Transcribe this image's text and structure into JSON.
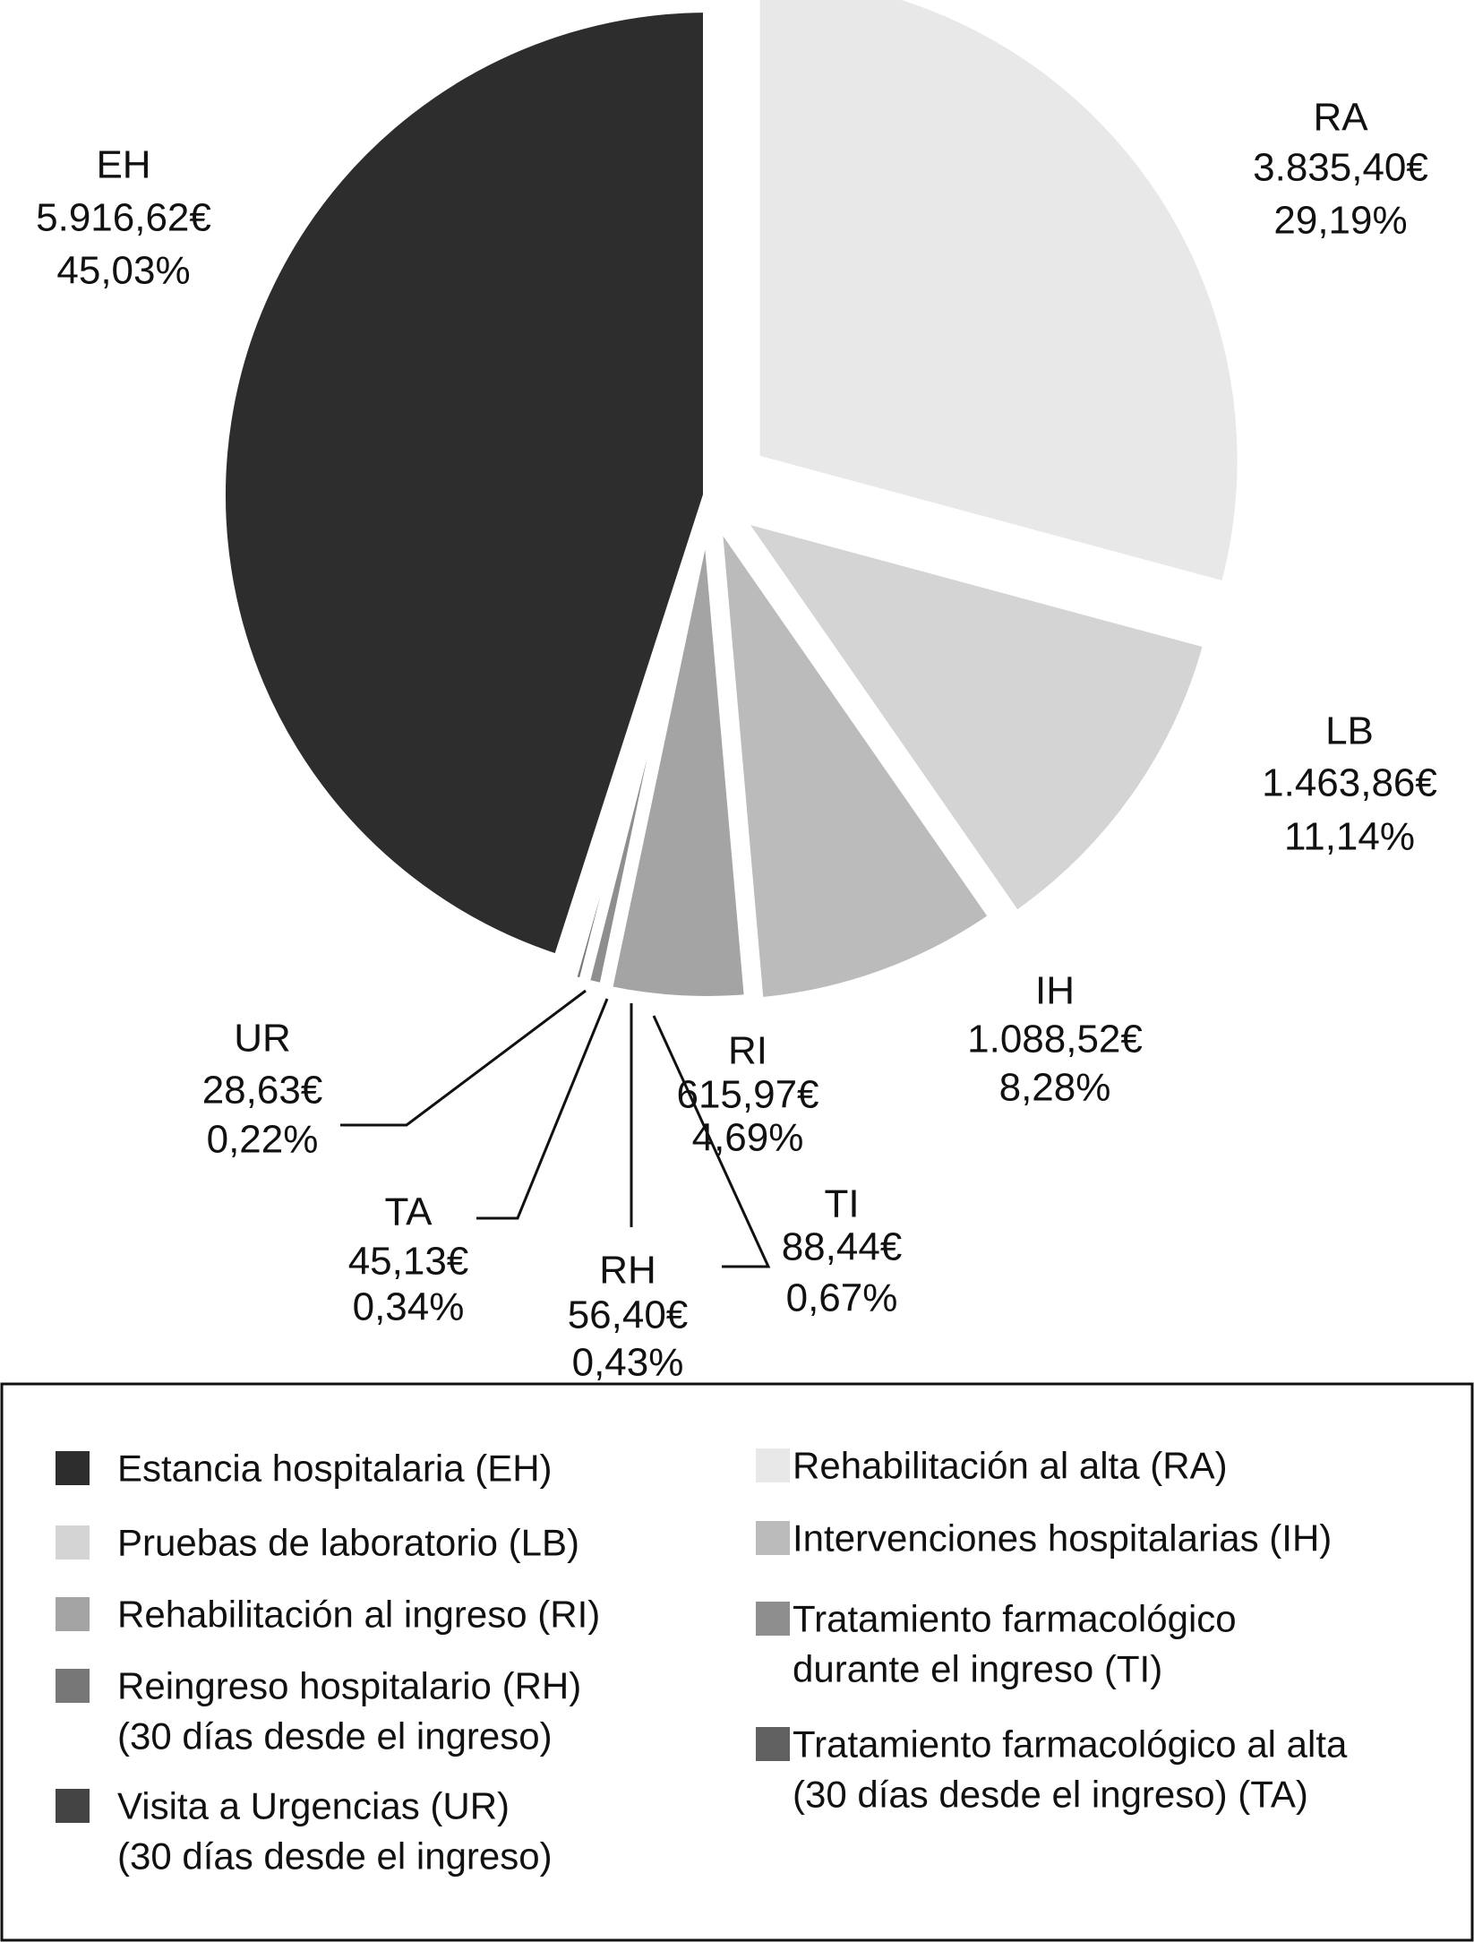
{
  "chart_data": {
    "type": "pie",
    "title": "",
    "legend_placement": "bottom",
    "slices": [
      {
        "code": "RA",
        "label": "Rehabilitación al alta (RA)",
        "value": 3835.4,
        "value_text": "3.835,40€",
        "percent": 29.19,
        "percent_text": "29,19%",
        "color": "#e8e8e8"
      },
      {
        "code": "LB",
        "label": "Pruebas de laboratorio (LB)",
        "value": 1463.86,
        "value_text": "1.463,86€",
        "percent": 11.14,
        "percent_text": "11,14%",
        "color": "#d4d4d4"
      },
      {
        "code": "IH",
        "label": "Intervenciones hospitalarias (IH)",
        "value": 1088.52,
        "value_text": "1.088,52€",
        "percent": 8.28,
        "percent_text": "8,28%",
        "color": "#bbbbbb"
      },
      {
        "code": "RI",
        "label": "Rehabilitación al ingreso (RI)",
        "value": 615.97,
        "value_text": "615,97€",
        "percent": 4.69,
        "percent_text": "4,69%",
        "color": "#a4a4a4"
      },
      {
        "code": "TI",
        "label": "Tratamiento farmacológico|durante el ingreso (TI)",
        "value": 88.44,
        "value_text": "88,44€",
        "percent": 0.67,
        "percent_text": "0,67%",
        "color": "#8e8e8e"
      },
      {
        "code": "RH",
        "label": "Reingreso hospitalario (RH)|(30 días desde el ingreso)",
        "value": 56.4,
        "value_text": "56,40€",
        "percent": 0.43,
        "percent_text": "0,43%",
        "color": "#777777"
      },
      {
        "code": "TA",
        "label": "Tratamiento farmacológico al alta|(30 días desde el ingreso) (TA)",
        "value": 45.13,
        "value_text": "45,13€",
        "percent": 0.34,
        "percent_text": "0,34%",
        "color": "#606060"
      },
      {
        "code": "UR",
        "label": "Visita a Urgencias (UR)|(30 días desde el ingreso)",
        "value": 28.63,
        "value_text": "28,63€",
        "percent": 0.22,
        "percent_text": "0,22%",
        "color": "#444444"
      },
      {
        "code": "EH",
        "label": "Estancia hospitalaria (EH)",
        "value": 5916.62,
        "value_text": "5.916,62€",
        "percent": 45.03,
        "percent_text": "45,03%",
        "color": "#2d2d2d"
      }
    ],
    "legend_order_left": [
      "EH",
      "LB",
      "RI",
      "RH",
      "UR"
    ],
    "legend_order_right": [
      "RA",
      "IH",
      "TI",
      "TA"
    ]
  }
}
